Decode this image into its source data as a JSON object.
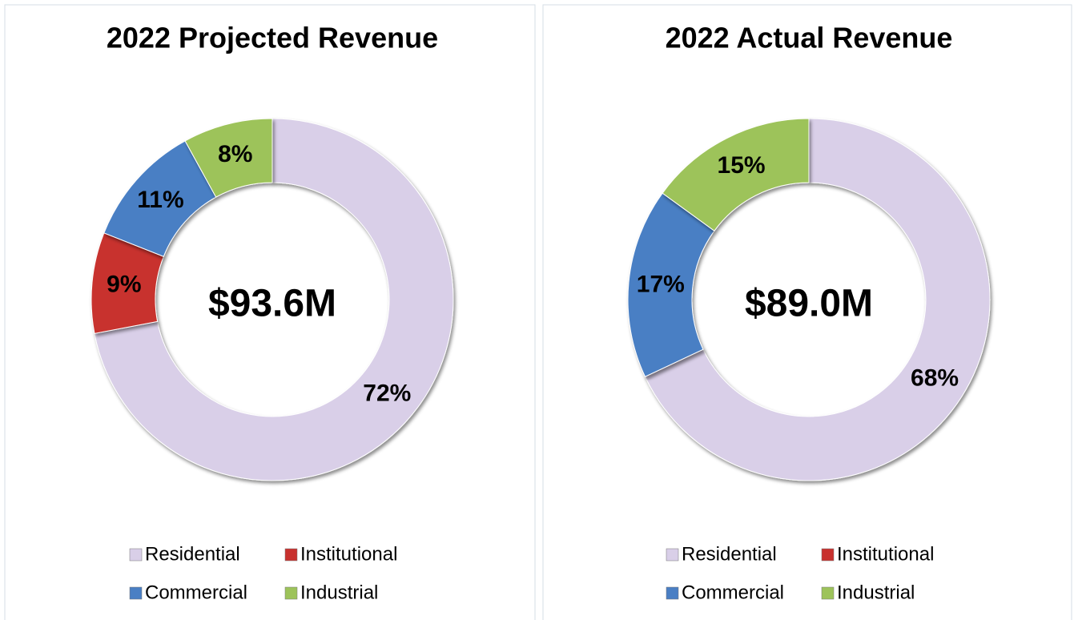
{
  "chart_data": [
    {
      "type": "donut",
      "title": "2022 Projected Revenue",
      "center_label": "$93.6M",
      "categories": [
        "Residential",
        "Institutional",
        "Commercial",
        "Industrial"
      ],
      "values": [
        72,
        9,
        11,
        8
      ],
      "value_labels": [
        "72%",
        "9%",
        "11%",
        "8%"
      ],
      "colors": [
        "#d9cfe8",
        "#c8312e",
        "#4a7fc4",
        "#9dc35a"
      ]
    },
    {
      "type": "donut",
      "title": "2022 Actual Revenue",
      "center_label": "$89.0M",
      "categories": [
        "Residential",
        "Institutional",
        "Commercial",
        "Industrial"
      ],
      "values": [
        68,
        0,
        17,
        15
      ],
      "value_labels": [
        "68%",
        null,
        "17%",
        "15%"
      ],
      "colors": [
        "#d9cfe8",
        "#c8312e",
        "#4a7fc4",
        "#9dc35a"
      ]
    }
  ]
}
